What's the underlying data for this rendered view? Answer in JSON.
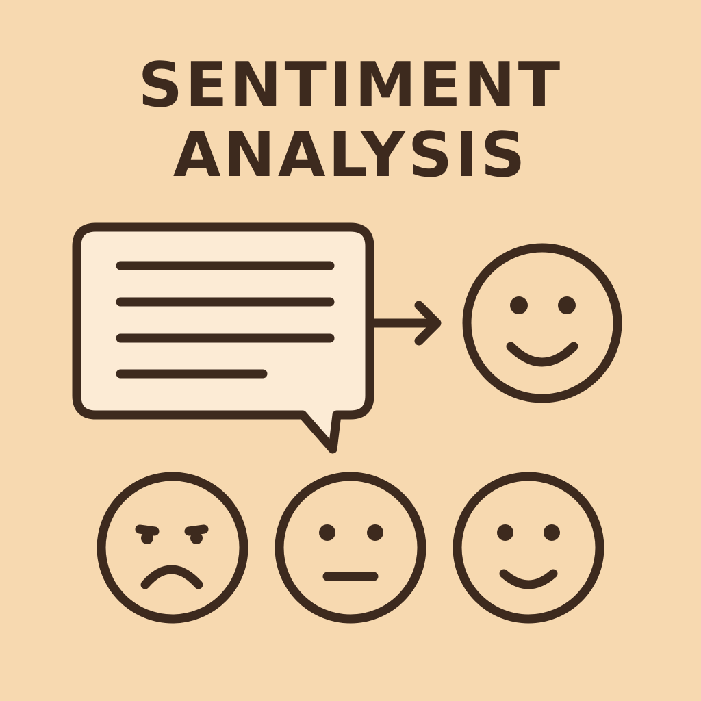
{
  "title": {
    "line1": "SENTIMENT",
    "line2": "ANALYSIS"
  },
  "icons": {
    "message": "speech-bubble-icon",
    "arrow": "arrow-right-icon",
    "result": "smile-face-icon",
    "negative": "sad-face-icon",
    "neutral": "neutral-face-icon",
    "positive": "happy-face-icon"
  },
  "colors": {
    "background": "#F7D9B0",
    "ink": "#3D2A1E",
    "bubble_fill": "#FCEBD5"
  }
}
